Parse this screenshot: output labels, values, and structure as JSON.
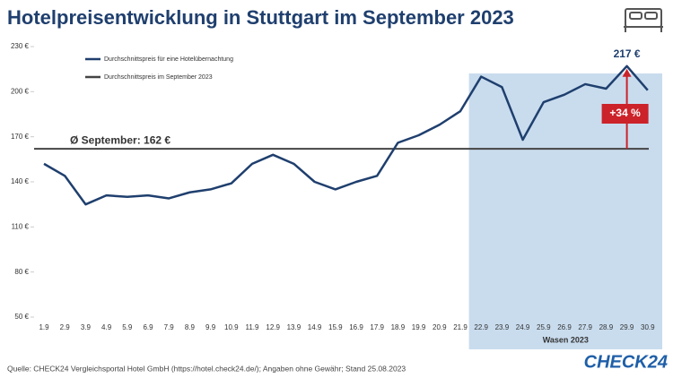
{
  "chart_data": {
    "type": "line",
    "title": "Hotelpreisentwicklung in Stuttgart im September 2023",
    "categories": [
      "1.9",
      "2.9",
      "3.9",
      "4.9",
      "5.9",
      "6.9",
      "7.9",
      "8.9",
      "9.9",
      "10.9",
      "11.9",
      "12.9",
      "13.9",
      "14.9",
      "15.9",
      "16.9",
      "17.9",
      "18.9",
      "19.9",
      "20.9",
      "21.9",
      "22.9",
      "23.9",
      "24.9",
      "25.9",
      "26.9",
      "27.9",
      "28.9",
      "29.9",
      "30.9"
    ],
    "series": [
      {
        "name": "Durchschnittspreis für eine Hotelübernachtung",
        "color": "#1f3f6e",
        "values": [
          152,
          144,
          125,
          131,
          130,
          131,
          129,
          133,
          135,
          139,
          152,
          158,
          152,
          140,
          135,
          140,
          144,
          166,
          171,
          178,
          187,
          210,
          203,
          168,
          193,
          198,
          205,
          202,
          217,
          201
        ],
        "value_labels": [
          null,
          null,
          null,
          null,
          null,
          null,
          null,
          null,
          null,
          null,
          null,
          null,
          null,
          null,
          null,
          null,
          null,
          null,
          null,
          null,
          null,
          null,
          null,
          null,
          null,
          null,
          null,
          null,
          "217 €",
          null
        ]
      }
    ],
    "reference_line": {
      "name": "Durchschnittspreis im September 2023",
      "value": 162,
      "label": "Ø September: 162 €",
      "color": "#444444"
    },
    "highlight": {
      "from": "22.9",
      "to": "30.9",
      "label": "Wasen 2023",
      "color": "#c9dcee"
    },
    "annotation": {
      "text": "+34 %",
      "x": "29.9",
      "color": "#cc2229"
    },
    "ylim": [
      50,
      230
    ],
    "yticks": [
      {
        "value": 50,
        "label": "50 €"
      },
      {
        "value": 80,
        "label": "80 €"
      },
      {
        "value": 110,
        "label": "110 €"
      },
      {
        "value": 140,
        "label": "140 €"
      },
      {
        "value": 170,
        "label": "170 €"
      },
      {
        "value": 200,
        "label": "200 €"
      },
      {
        "value": 230,
        "label": "230 €"
      }
    ],
    "grid": false,
    "source": "Quelle: CHECK24 Vergleichsportal Hotel GmbH (https://hotel.check24.de/); Angaben ohne Gewähr; Stand 25.08.2023",
    "logo": "CHECK24"
  }
}
